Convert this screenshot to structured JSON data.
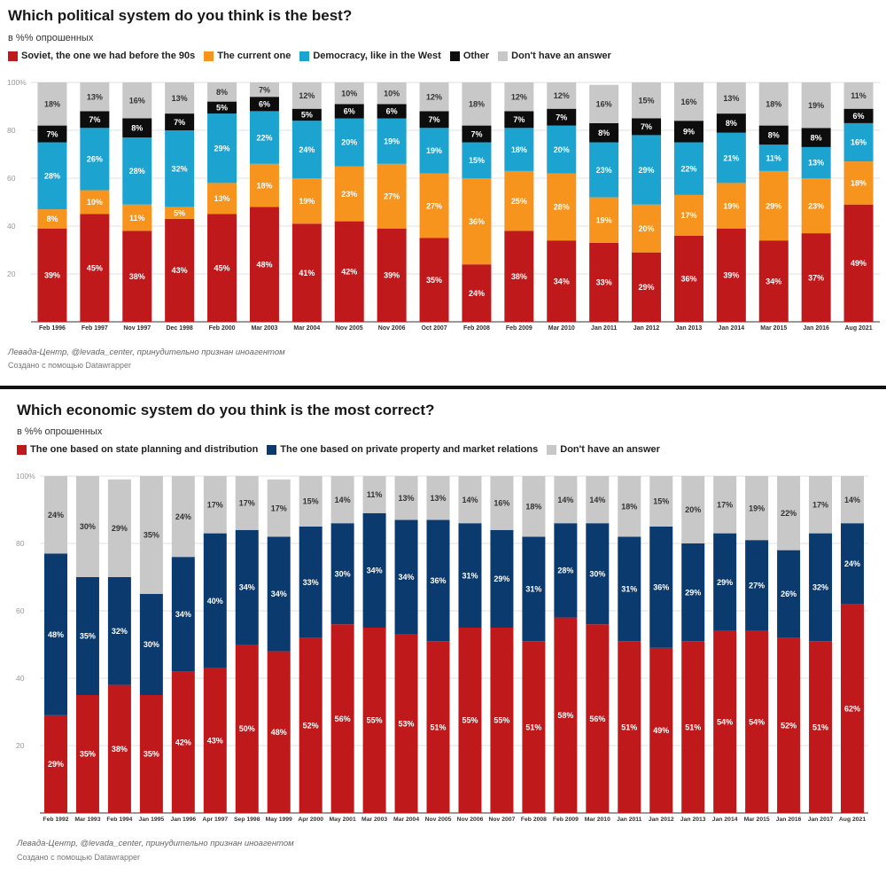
{
  "charts": [
    {
      "title": "Which political system do you think is the best?",
      "subtitle": "в %% опрошенных",
      "source": "Левада-Центр, @levada_center, принудительно признан иноагентом",
      "credit": "Создано с помощью Datawrapper",
      "colors": [
        "#c0191c",
        "#f7941d",
        "#1ca3d0",
        "#0d0d0d",
        "#c8c8c8"
      ],
      "label_colors": [
        "#ffffff",
        "#ffffff",
        "#ffffff",
        "#ffffff",
        "#333333"
      ]
    },
    {
      "title": "Which economic system do you think is the most correct?",
      "subtitle": "в %% опрошенных",
      "source": "Левада-Центр, @levada_center, принудительно признан иноагентом",
      "credit": "Создано с помощью Datawrapper",
      "colors": [
        "#c0191c",
        "#0b3a6e",
        "#c8c8c8"
      ],
      "label_colors": [
        "#ffffff",
        "#ffffff",
        "#333333"
      ]
    }
  ],
  "chart_data": [
    {
      "type": "bar",
      "stacked": true,
      "title": "Which political system do you think is the best?",
      "ylabel": "в %% опрошенных",
      "ylim": [
        0,
        100
      ],
      "yticks": [
        "20",
        "40",
        "60",
        "80",
        "100%"
      ],
      "grid": true,
      "legend": "top",
      "categories": [
        "Feb 1996",
        "Feb 1997",
        "Nov 1997",
        "Dec 1998",
        "Feb 2000",
        "Mar 2003",
        "Mar 2004",
        "Nov 2005",
        "Nov 2006",
        "Oct 2007",
        "Feb 2008",
        "Feb 2009",
        "Mar 2010",
        "Jan 2011",
        "Jan 2012",
        "Jan 2013",
        "Jan 2014",
        "Mar 2015",
        "Jan 2016",
        "Aug 2021"
      ],
      "series": [
        {
          "name": "Soviet, the one we had before the 90s",
          "values": [
            39,
            45,
            38,
            43,
            45,
            48,
            41,
            42,
            39,
            35,
            24,
            38,
            34,
            33,
            29,
            36,
            39,
            34,
            37,
            49
          ]
        },
        {
          "name": "The current one",
          "values": [
            8,
            10,
            11,
            5,
            13,
            18,
            19,
            23,
            27,
            27,
            36,
            25,
            28,
            19,
            20,
            17,
            19,
            29,
            23,
            18
          ]
        },
        {
          "name": "Democracy, like in the West",
          "values": [
            28,
            26,
            28,
            32,
            29,
            22,
            24,
            20,
            19,
            19,
            15,
            18,
            20,
            23,
            29,
            22,
            21,
            11,
            13,
            16
          ]
        },
        {
          "name": "Other",
          "values": [
            7,
            7,
            8,
            7,
            5,
            6,
            5,
            6,
            6,
            7,
            7,
            7,
            7,
            8,
            7,
            9,
            8,
            8,
            8,
            6
          ]
        },
        {
          "name": "Don't have an answer",
          "values": [
            18,
            13,
            16,
            13,
            8,
            7,
            12,
            10,
            10,
            12,
            18,
            12,
            12,
            16,
            15,
            16,
            13,
            18,
            19,
            11
          ]
        }
      ]
    },
    {
      "type": "bar",
      "stacked": true,
      "title": "Which economic system do you think is the most correct?",
      "ylabel": "в %% опрошенных",
      "ylim": [
        0,
        100
      ],
      "yticks": [
        "20",
        "40",
        "60",
        "80",
        "100%"
      ],
      "grid": true,
      "legend": "top",
      "categories": [
        "Feb 1992",
        "Mar 1993",
        "Feb 1994",
        "Jan 1995",
        "Jan 1996",
        "Apr 1997",
        "Sep 1998",
        "May 1999",
        "Apr 2000",
        "May 2001",
        "Mar 2003",
        "Mar 2004",
        "Nov 2005",
        "Nov 2006",
        "Nov 2007",
        "Feb 2008",
        "Feb 2009",
        "Mar 2010",
        "Jan 2011",
        "Jan 2012",
        "Jan 2013",
        "Jan 2014",
        "Mar 2015",
        "Jan 2016",
        "Jan 2017",
        "Aug 2021"
      ],
      "series": [
        {
          "name": "The one based on state planning and distribution",
          "values": [
            29,
            35,
            38,
            35,
            42,
            43,
            50,
            48,
            52,
            56,
            55,
            53,
            51,
            55,
            55,
            51,
            58,
            56,
            51,
            49,
            51,
            54,
            54,
            52,
            51,
            62
          ]
        },
        {
          "name": "The one based on private property and market relations",
          "values": [
            48,
            35,
            32,
            30,
            34,
            40,
            34,
            34,
            33,
            30,
            34,
            34,
            36,
            31,
            29,
            31,
            28,
            30,
            31,
            36,
            29,
            29,
            27,
            26,
            32,
            24
          ]
        },
        {
          "name": "Don't have an answer",
          "values": [
            24,
            30,
            29,
            35,
            24,
            17,
            17,
            17,
            15,
            14,
            11,
            13,
            13,
            14,
            16,
            18,
            14,
            14,
            18,
            15,
            20,
            17,
            19,
            22,
            17,
            14
          ]
        }
      ]
    }
  ]
}
